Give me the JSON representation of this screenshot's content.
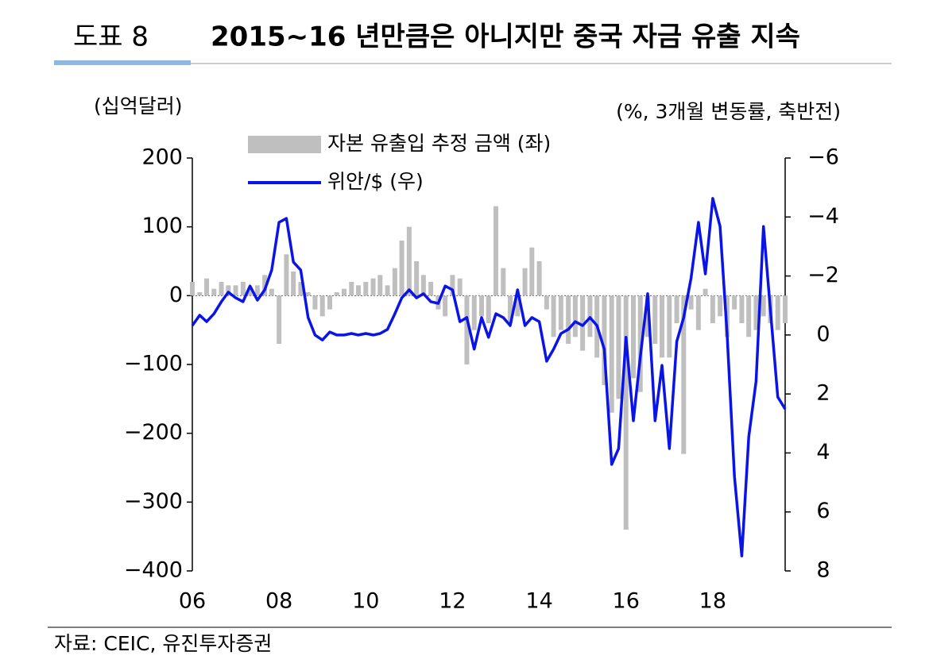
{
  "header": {
    "label": "도표 8",
    "title": "2015~16 년만큼은 아니지만 중국 자금 유출 지속"
  },
  "source": "자료: CEIC, 유진투자증권",
  "chart_data": {
    "type": "bar-line",
    "ylabel": "(십억달러)",
    "y2label": "(%, 3개월 변동률, 축반전)",
    "x": [
      2006.0,
      2006.17,
      2006.33,
      2006.5,
      2006.67,
      2006.83,
      2007.0,
      2007.17,
      2007.33,
      2007.5,
      2007.67,
      2007.83,
      2008.0,
      2008.17,
      2008.33,
      2008.5,
      2008.67,
      2008.83,
      2009.0,
      2009.17,
      2009.33,
      2009.5,
      2009.67,
      2009.83,
      2010.0,
      2010.17,
      2010.33,
      2010.5,
      2010.67,
      2010.83,
      2011.0,
      2011.17,
      2011.33,
      2011.5,
      2011.67,
      2011.83,
      2012.0,
      2012.17,
      2012.33,
      2012.5,
      2012.67,
      2012.83,
      2013.0,
      2013.17,
      2013.33,
      2013.5,
      2013.67,
      2013.83,
      2014.0,
      2014.17,
      2014.33,
      2014.5,
      2014.67,
      2014.83,
      2015.0,
      2015.17,
      2015.33,
      2015.5,
      2015.67,
      2015.83,
      2016.0,
      2016.17,
      2016.33,
      2016.5,
      2016.67,
      2016.83,
      2017.0,
      2017.17,
      2017.33,
      2017.5,
      2017.67,
      2017.83,
      2018.0,
      2018.17,
      2018.33,
      2018.5,
      2018.67,
      2018.83,
      2019.0,
      2019.17,
      2019.33,
      2019.5,
      2019.67
    ],
    "series": [
      {
        "name": "자본 유출입 추정 금액 (좌)",
        "kind": "bar",
        "color": "#bfbfbf",
        "values": [
          20,
          5,
          25,
          10,
          20,
          15,
          15,
          20,
          10,
          15,
          30,
          10,
          -70,
          60,
          35,
          20,
          5,
          -20,
          -30,
          -20,
          5,
          10,
          20,
          15,
          20,
          25,
          30,
          15,
          40,
          80,
          100,
          50,
          30,
          20,
          -20,
          -30,
          30,
          25,
          -100,
          -50,
          -30,
          -40,
          130,
          40,
          -40,
          -30,
          40,
          70,
          50,
          -20,
          -60,
          -50,
          -70,
          -60,
          -80,
          -60,
          -90,
          -130,
          -170,
          -150,
          -340,
          -120,
          -140,
          -60,
          -70,
          -90,
          -90,
          -40,
          -230,
          -20,
          -50,
          10,
          -40,
          -30,
          -60,
          -20,
          -40,
          -60,
          -50,
          -30,
          -40,
          -50,
          -40
        ]
      },
      {
        "name": "위안/$ (우)",
        "kind": "line",
        "axis": "y2",
        "color": "#0a14e6",
        "values": [
          -0.32,
          -0.67,
          -0.45,
          -0.72,
          -1.13,
          -1.45,
          -1.26,
          -1.13,
          -1.66,
          -1.18,
          -1.53,
          -2.2,
          -3.82,
          -3.95,
          -2.47,
          -2.2,
          -0.59,
          0,
          0.17,
          -0.1,
          0,
          0,
          -0.05,
          0,
          -0.05,
          0,
          -0.05,
          -0.19,
          -0.72,
          -1.26,
          -1.53,
          -1.26,
          -1.4,
          -1.13,
          -1.07,
          -1.66,
          -1.53,
          -0.45,
          -0.59,
          0.48,
          -0.59,
          0.08,
          -0.72,
          -0.59,
          -0.32,
          -1.53,
          -0.32,
          -0.59,
          -0.45,
          0.89,
          0.48,
          -0.05,
          -0.19,
          -0.45,
          -0.32,
          -0.59,
          -0.32,
          0.48,
          4.39,
          3.85,
          0.08,
          2.91,
          0.75,
          -1.4,
          2.91,
          1.03,
          3.85,
          0.22,
          -0.59,
          -1.93,
          -3.82,
          -2.07,
          -4.63,
          -3.68,
          -0.05,
          4.8,
          7.49,
          3.45,
          1.57,
          -3.68,
          -0.86,
          2.1,
          2.51
        ]
      }
    ],
    "xlim": [
      2006,
      2019.67
    ],
    "xticks": [
      {
        "value": 2006,
        "label": "06"
      },
      {
        "value": 2008,
        "label": "08"
      },
      {
        "value": 2010,
        "label": "10"
      },
      {
        "value": 2012,
        "label": "12"
      },
      {
        "value": 2014,
        "label": "14"
      },
      {
        "value": 2016,
        "label": "16"
      },
      {
        "value": 2018,
        "label": "18"
      }
    ],
    "ylim": [
      -400,
      200
    ],
    "yticks": [
      200,
      100,
      0,
      {
        "value": -100,
        "label": "−100"
      },
      {
        "value": -200,
        "label": "−200"
      },
      {
        "value": -300,
        "label": "−300"
      },
      {
        "value": -400,
        "label": "−400"
      }
    ],
    "y2lim": [
      8,
      -6
    ],
    "y2ticks": [
      {
        "value": -6,
        "label": "−6"
      },
      {
        "value": -4,
        "label": "−4"
      },
      {
        "value": -2,
        "label": "−2"
      },
      0,
      2,
      4,
      6,
      8
    ]
  }
}
